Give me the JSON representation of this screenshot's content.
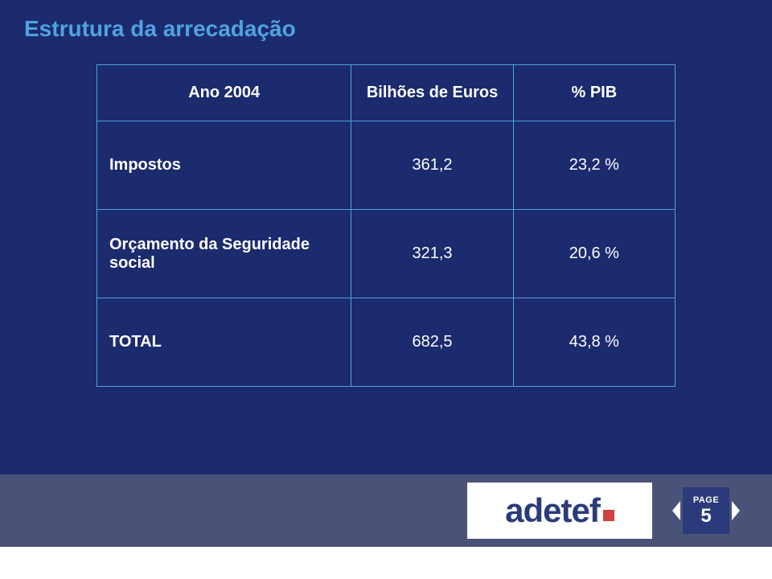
{
  "title": "Estrutura da arrecadação",
  "table": {
    "headers": {
      "c1": "Ano 2004",
      "c2": "Bilhões de Euros",
      "c3": "% PIB"
    },
    "rows": [
      {
        "label": "Impostos",
        "val": "361,2",
        "pct": "23,2 %"
      },
      {
        "label": "Orçamento da Seguridade social",
        "val": "321,3",
        "pct": "20,6 %"
      },
      {
        "label": "TOTAL",
        "val": "682,5",
        "pct": "43,8 %"
      }
    ]
  },
  "footer": {
    "logo_text": "adetef",
    "page_label": "PAGE",
    "page_num": "5"
  },
  "colors": {
    "bg": "#1c2a6e",
    "title": "#4fa3e0",
    "border": "#4fa3e0",
    "text": "#ffffff",
    "band": "#4a5278",
    "logo_bg": "#ffffff",
    "logo_text": "#2a3a7a",
    "logo_dot": "#d34040"
  },
  "fonts": {
    "title_size": 28,
    "cell_size": 20,
    "logo_size": 42,
    "page_label_size": 11,
    "page_num_size": 24
  }
}
